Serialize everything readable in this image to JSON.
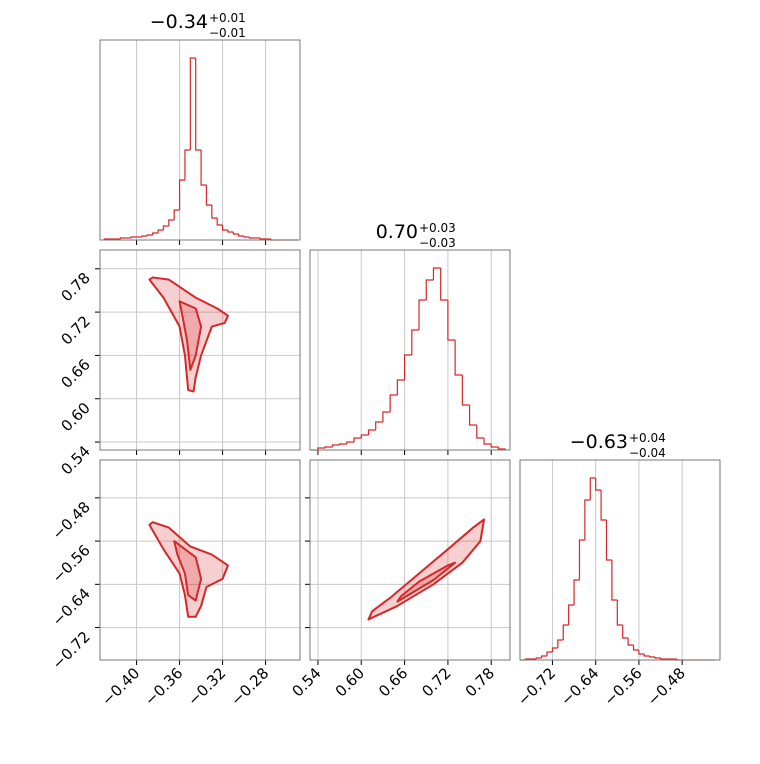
{
  "chart_data": [
    {
      "type": "histogram",
      "title": "−0.34",
      "title_plus": "+0.01",
      "title_minus": "−0.01",
      "color": "#d62728",
      "bins": [
        -0.43,
        -0.425,
        -0.42,
        -0.415,
        -0.41,
        -0.405,
        -0.4,
        -0.395,
        -0.39,
        -0.385,
        -0.38,
        -0.375,
        -0.37,
        -0.365,
        -0.36,
        -0.355,
        -0.35,
        -0.345,
        -0.34,
        -0.335,
        -0.33,
        -0.325,
        -0.32,
        -0.315,
        -0.31,
        -0.305,
        -0.3,
        -0.295,
        -0.29,
        -0.285,
        -0.28,
        -0.275,
        -0.27,
        -0.265,
        -0.26,
        -0.255,
        -0.25
      ],
      "values": [
        1,
        1,
        1,
        2,
        2,
        3,
        3,
        4,
        5,
        7,
        10,
        14,
        20,
        30,
        60,
        90,
        182,
        90,
        55,
        35,
        22,
        15,
        10,
        8,
        6,
        4,
        3,
        2,
        2,
        1,
        1,
        0,
        0,
        0,
        0,
        0
      ],
      "xlim": [
        -0.434,
        -0.248
      ],
      "ylim": [
        0,
        200
      ],
      "xticks": [
        -0.4,
        -0.36,
        -0.32,
        -0.28
      ],
      "grid": true
    },
    {
      "type": "contour",
      "color": "#d62728",
      "levels": [
        {
          "x": [
            -0.385,
            -0.37,
            -0.345,
            -0.325,
            -0.315,
            -0.318,
            -0.33,
            -0.335,
            -0.34,
            -0.345,
            -0.347,
            -0.352,
            -0.355,
            -0.36,
            -0.375,
            -0.388
          ],
          "y": [
            0.768,
            0.765,
            0.74,
            0.725,
            0.715,
            0.705,
            0.7,
            0.68,
            0.66,
            0.63,
            0.61,
            0.612,
            0.66,
            0.7,
            0.74,
            0.765
          ]
        },
        {
          "x": [
            -0.36,
            -0.345,
            -0.34,
            -0.345,
            -0.35,
            -0.353,
            -0.358
          ],
          "y": [
            0.735,
            0.725,
            0.7,
            0.66,
            0.64,
            0.68,
            0.72
          ]
        }
      ],
      "xlim": [
        -0.434,
        -0.248
      ],
      "ylim": [
        0.529,
        0.806
      ],
      "xticks": [
        -0.4,
        -0.36,
        -0.32,
        -0.28
      ],
      "yticks": [
        0.54,
        {
          "value": 0.6,
          "label": "0.60"
        },
        0.66,
        0.72,
        0.78
      ],
      "ytick_labels": true,
      "grid": true
    },
    {
      "type": "histogram",
      "title": "0.70",
      "title_plus": "+0.03",
      "title_minus": "−0.03",
      "color": "#d62728",
      "bins": [
        0.53,
        0.54,
        0.55,
        0.56,
        0.57,
        0.58,
        0.59,
        0.6,
        0.61,
        0.62,
        0.63,
        0.64,
        0.65,
        0.66,
        0.67,
        0.68,
        0.69,
        0.7,
        0.71,
        0.72,
        0.73,
        0.74,
        0.75,
        0.76,
        0.77,
        0.78,
        0.79,
        0.8
      ],
      "values": [
        0,
        2,
        3,
        5,
        6,
        8,
        12,
        15,
        20,
        28,
        38,
        55,
        70,
        95,
        120,
        150,
        170,
        182,
        150,
        110,
        75,
        45,
        25,
        12,
        6,
        3,
        1
      ],
      "xlim": [
        0.529,
        0.806
      ],
      "ylim": [
        0,
        200
      ],
      "xticks": [
        0.54,
        0.6,
        0.66,
        0.72,
        0.78
      ],
      "grid": true
    },
    {
      "type": "contour",
      "color": "#d62728",
      "levels": [
        {
          "x": [
            -0.385,
            -0.37,
            -0.35,
            -0.33,
            -0.315,
            -0.32,
            -0.335,
            -0.34,
            -0.345,
            -0.352,
            -0.355,
            -0.36,
            -0.375,
            -0.388
          ],
          "y": [
            -0.525,
            -0.535,
            -0.57,
            -0.585,
            -0.605,
            -0.63,
            -0.645,
            -0.68,
            -0.7,
            -0.7,
            -0.66,
            -0.62,
            -0.575,
            -0.53
          ]
        },
        {
          "x": [
            -0.365,
            -0.345,
            -0.34,
            -0.345,
            -0.352,
            -0.355,
            -0.362
          ],
          "y": [
            -0.56,
            -0.59,
            -0.63,
            -0.67,
            -0.66,
            -0.62,
            -0.585
          ]
        }
      ],
      "xlim": [
        -0.434,
        -0.248
      ],
      "ylim": [
        -0.78,
        -0.41
      ],
      "xticks": [
        {
          "value": -0.4,
          "label": "−0.40"
        },
        {
          "value": -0.36,
          "label": "−0.36"
        },
        {
          "value": -0.32,
          "label": "−0.32"
        },
        {
          "value": -0.28,
          "label": "−0.28"
        }
      ],
      "yticks": [
        {
          "value": -0.72,
          "label": "−0.72"
        },
        {
          "value": -0.64,
          "label": "−0.64"
        },
        {
          "value": -0.56,
          "label": "−0.56"
        },
        {
          "value": -0.48,
          "label": "−0.48"
        }
      ],
      "xtick_labels": true,
      "ytick_labels": true,
      "grid": true
    },
    {
      "type": "contour",
      "color": "#d62728",
      "levels": [
        {
          "x": [
            0.61,
            0.65,
            0.7,
            0.74,
            0.765,
            0.77,
            0.755,
            0.72,
            0.68,
            0.64,
            0.615
          ],
          "y": [
            -0.705,
            -0.68,
            -0.64,
            -0.6,
            -0.56,
            -0.52,
            -0.535,
            -0.575,
            -0.62,
            -0.665,
            -0.69
          ]
        },
        {
          "x": [
            0.65,
            0.7,
            0.73,
            0.72,
            0.68,
            0.655
          ],
          "y": [
            -0.672,
            -0.632,
            -0.6,
            -0.605,
            -0.635,
            -0.662
          ]
        }
      ],
      "xlim": [
        0.529,
        0.806
      ],
      "ylim": [
        -0.78,
        -0.41
      ],
      "xticks": [
        0.54,
        {
          "value": 0.6,
          "label": "0.60"
        },
        0.66,
        0.72,
        0.78
      ],
      "yticks": [
        -0.72,
        -0.64,
        -0.56,
        -0.48
      ],
      "xtick_labels": true,
      "grid": true
    },
    {
      "type": "histogram",
      "title": "−0.63",
      "title_plus": "+0.04",
      "title_minus": "−0.04",
      "color": "#d62728",
      "bins": [
        -0.78,
        -0.77,
        -0.76,
        -0.75,
        -0.74,
        -0.73,
        -0.72,
        -0.71,
        -0.7,
        -0.69,
        -0.68,
        -0.67,
        -0.66,
        -0.65,
        -0.64,
        -0.63,
        -0.62,
        -0.61,
        -0.6,
        -0.59,
        -0.58,
        -0.57,
        -0.56,
        -0.55,
        -0.54,
        -0.53,
        -0.52,
        -0.51,
        -0.5,
        -0.49,
        -0.48,
        -0.47,
        -0.46,
        -0.45,
        -0.44,
        -0.43,
        -0.42
      ],
      "values": [
        0,
        1,
        1,
        2,
        4,
        8,
        12,
        20,
        35,
        55,
        80,
        120,
        160,
        182,
        170,
        140,
        100,
        60,
        35,
        22,
        15,
        10,
        6,
        4,
        3,
        2,
        1,
        1,
        1,
        0,
        0,
        0,
        0,
        0,
        0,
        0
      ],
      "xlim": [
        -0.78,
        -0.41
      ],
      "ylim": [
        0,
        200
      ],
      "xticks": [
        {
          "value": -0.72,
          "label": "−0.72"
        },
        {
          "value": -0.64,
          "label": "−0.64"
        },
        {
          "value": -0.56,
          "label": "−0.56"
        },
        {
          "value": -0.48,
          "label": "−0.48"
        }
      ],
      "xtick_labels": true,
      "grid": true
    }
  ]
}
